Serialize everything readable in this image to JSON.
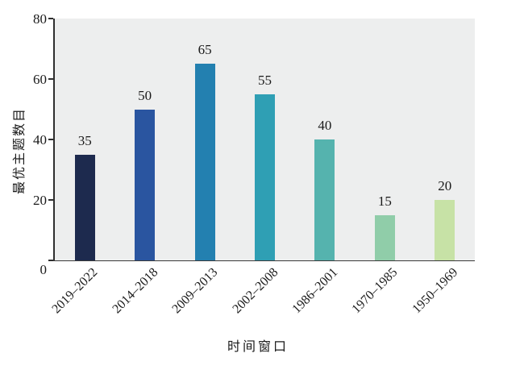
{
  "chart_data": {
    "type": "bar",
    "categories": [
      "2019–2022",
      "2014–2018",
      "2009–2013",
      "2002–2008",
      "1986–2001",
      "1970–1985",
      "1950–1969"
    ],
    "values": [
      35,
      50,
      65,
      55,
      40,
      15,
      20
    ],
    "bar_colors": [
      "#1D2A4E",
      "#2A55A0",
      "#2380B0",
      "#2F9FB4",
      "#55B3AE",
      "#90CDA9",
      "#C7E2A6"
    ],
    "title": "",
    "xlabel": "时间窗口",
    "ylabel": "最优主题数目",
    "ylim": [
      0,
      80
    ],
    "yticks": [
      0,
      20,
      40,
      60,
      80
    ],
    "grid": false,
    "legend": "none",
    "plot_background": "#EDEEEE",
    "axis_color": "#2F2F2F",
    "label_color": "#1A1A1A"
  }
}
